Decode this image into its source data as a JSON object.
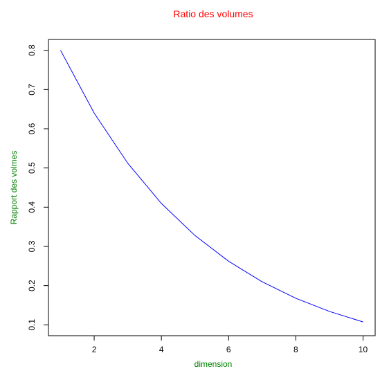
{
  "chart_data": {
    "type": "line",
    "title": "Ratio des volumes",
    "xlabel": "dimension",
    "ylabel": "Rapport des volmes",
    "x": [
      1,
      2,
      3,
      4,
      5,
      6,
      7,
      8,
      9,
      10
    ],
    "series": [
      {
        "values": [
          0.8,
          0.64,
          0.512,
          0.4096,
          0.32768,
          0.262144,
          0.2097152,
          0.16777216,
          0.134217728,
          0.1073741824
        ]
      }
    ],
    "xlim": [
      0.64,
      10.36
    ],
    "ylim": [
      0.0723,
      0.8277
    ],
    "xticks": [
      2,
      4,
      6,
      8,
      10
    ],
    "yticks": [
      0.1,
      0.2,
      0.3,
      0.4,
      0.5,
      0.6,
      0.7,
      0.8
    ],
    "grid": false,
    "colors": {
      "title": "#ff0000",
      "axis_labels": "#008000",
      "line": "#0000ff",
      "axis": "#000000"
    }
  }
}
